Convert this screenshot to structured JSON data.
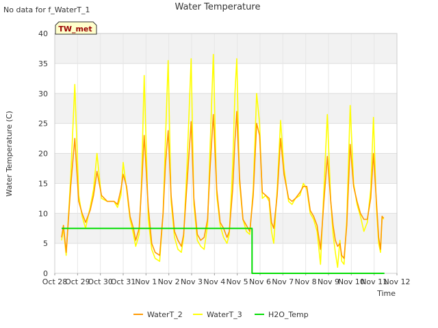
{
  "nodata_text": "No data for f_WaterT_1",
  "badge_label": "TW_met",
  "chart_data": {
    "type": "line",
    "title": "Water Temperature",
    "xlabel": "Time",
    "ylabel": "Water Temperature (C)",
    "ylim": [
      0,
      40
    ],
    "yticks": [
      0,
      5,
      10,
      15,
      20,
      25,
      30,
      35,
      40
    ],
    "xlim": [
      0,
      15
    ],
    "xtick_labels": [
      "Oct 28",
      "Oct 29",
      "Oct 30",
      "Oct 31",
      "Nov 1",
      "Nov 2",
      "Nov 3",
      "Nov 4",
      "Nov 5",
      "Nov 6",
      "Nov 7",
      "Nov 8",
      "Nov 9",
      "Nov 10",
      "Nov 11",
      "Nov 12"
    ],
    "x_unit": "days since Oct 28 00:00",
    "grid": true,
    "legend_position": "bottom-center",
    "series": [
      {
        "name": "WaterT_2",
        "color": "#ff9900",
        "points": [
          [
            0.3,
            6.0
          ],
          [
            0.38,
            8.0
          ],
          [
            0.5,
            3.5
          ],
          [
            0.7,
            14.5
          ],
          [
            0.88,
            22.5
          ],
          [
            1.05,
            12.0
          ],
          [
            1.2,
            10.0
          ],
          [
            1.35,
            8.5
          ],
          [
            1.55,
            10.5
          ],
          [
            1.7,
            13.0
          ],
          [
            1.85,
            17.0
          ],
          [
            2.05,
            13.0
          ],
          [
            2.3,
            12.0
          ],
          [
            2.6,
            12.0
          ],
          [
            2.75,
            11.5
          ],
          [
            2.9,
            14.0
          ],
          [
            3.0,
            16.5
          ],
          [
            3.15,
            14.5
          ],
          [
            3.3,
            9.5
          ],
          [
            3.45,
            7.5
          ],
          [
            3.55,
            5.5
          ],
          [
            3.7,
            7.5
          ],
          [
            3.8,
            14.0
          ],
          [
            3.92,
            23.0
          ],
          [
            4.1,
            11.0
          ],
          [
            4.25,
            5.0
          ],
          [
            4.4,
            3.5
          ],
          [
            4.6,
            3.0
          ],
          [
            4.75,
            10.0
          ],
          [
            4.85,
            18.0
          ],
          [
            4.97,
            23.8
          ],
          [
            5.1,
            13.0
          ],
          [
            5.25,
            7.0
          ],
          [
            5.4,
            5.5
          ],
          [
            5.55,
            4.5
          ],
          [
            5.65,
            6.5
          ],
          [
            5.8,
            15.0
          ],
          [
            5.98,
            25.3
          ],
          [
            6.1,
            12.5
          ],
          [
            6.25,
            6.5
          ],
          [
            6.4,
            5.5
          ],
          [
            6.55,
            6.0
          ],
          [
            6.7,
            9.0
          ],
          [
            6.8,
            17.0
          ],
          [
            6.95,
            26.5
          ],
          [
            7.1,
            14.0
          ],
          [
            7.25,
            8.5
          ],
          [
            7.4,
            7.5
          ],
          [
            7.55,
            6.0
          ],
          [
            7.65,
            7.0
          ],
          [
            7.8,
            14.0
          ],
          [
            7.9,
            22.0
          ],
          [
            7.98,
            27.0
          ],
          [
            8.1,
            16.0
          ],
          [
            8.25,
            9.0
          ],
          [
            8.4,
            8.0
          ],
          [
            8.55,
            7.0
          ],
          [
            8.7,
            13.0
          ],
          [
            8.85,
            25.0
          ],
          [
            8.98,
            23.0
          ],
          [
            9.1,
            13.5
          ],
          [
            9.25,
            13.0
          ],
          [
            9.4,
            12.5
          ],
          [
            9.5,
            8.5
          ],
          [
            9.6,
            7.5
          ],
          [
            9.75,
            13.0
          ],
          [
            9.9,
            22.5
          ],
          [
            10.05,
            16.5
          ],
          [
            10.25,
            12.5
          ],
          [
            10.4,
            12.0
          ],
          [
            10.55,
            12.5
          ],
          [
            10.75,
            13.5
          ],
          [
            10.9,
            14.5
          ],
          [
            11.05,
            14.5
          ],
          [
            11.2,
            10.5
          ],
          [
            11.35,
            9.5
          ],
          [
            11.5,
            8.0
          ],
          [
            11.65,
            4.0
          ],
          [
            11.8,
            12.0
          ],
          [
            11.95,
            19.5
          ],
          [
            12.1,
            12.0
          ],
          [
            12.2,
            8.0
          ],
          [
            12.3,
            5.5
          ],
          [
            12.4,
            4.5
          ],
          [
            12.5,
            5.0
          ],
          [
            12.58,
            3.0
          ],
          [
            12.68,
            2.5
          ],
          [
            12.8,
            8.0
          ],
          [
            12.95,
            21.5
          ],
          [
            13.1,
            14.5
          ],
          [
            13.25,
            12.0
          ],
          [
            13.4,
            10.0
          ],
          [
            13.55,
            9.0
          ],
          [
            13.7,
            9.0
          ],
          [
            13.85,
            12.5
          ],
          [
            13.97,
            20.0
          ],
          [
            14.1,
            12.0
          ],
          [
            14.2,
            6.0
          ],
          [
            14.28,
            4.0
          ],
          [
            14.35,
            9.5
          ],
          [
            14.42,
            9.2
          ]
        ]
      },
      {
        "name": "WaterT_3",
        "color": "#ffff00",
        "points": [
          [
            0.3,
            5.5
          ],
          [
            0.38,
            7.5
          ],
          [
            0.5,
            3.0
          ],
          [
            0.7,
            16.0
          ],
          [
            0.88,
            31.5
          ],
          [
            1.05,
            13.0
          ],
          [
            1.2,
            9.5
          ],
          [
            1.35,
            7.5
          ],
          [
            1.55,
            11.0
          ],
          [
            1.7,
            14.0
          ],
          [
            1.85,
            20.0
          ],
          [
            2.05,
            12.5
          ],
          [
            2.3,
            12.0
          ],
          [
            2.6,
            12.0
          ],
          [
            2.75,
            11.0
          ],
          [
            2.9,
            13.0
          ],
          [
            3.0,
            18.5
          ],
          [
            3.15,
            14.0
          ],
          [
            3.3,
            9.0
          ],
          [
            3.45,
            6.5
          ],
          [
            3.55,
            4.5
          ],
          [
            3.7,
            6.5
          ],
          [
            3.8,
            15.0
          ],
          [
            3.92,
            33.0
          ],
          [
            4.1,
            9.0
          ],
          [
            4.25,
            4.0
          ],
          [
            4.4,
            2.5
          ],
          [
            4.6,
            2.0
          ],
          [
            4.75,
            10.0
          ],
          [
            4.85,
            22.0
          ],
          [
            4.97,
            35.5
          ],
          [
            5.1,
            12.0
          ],
          [
            5.25,
            6.0
          ],
          [
            5.4,
            4.0
          ],
          [
            5.55,
            3.5
          ],
          [
            5.65,
            6.0
          ],
          [
            5.8,
            18.0
          ],
          [
            5.98,
            35.8
          ],
          [
            6.1,
            11.5
          ],
          [
            6.25,
            5.5
          ],
          [
            6.4,
            4.5
          ],
          [
            6.55,
            4.0
          ],
          [
            6.7,
            8.0
          ],
          [
            6.8,
            20.0
          ],
          [
            6.95,
            36.5
          ],
          [
            7.1,
            13.0
          ],
          [
            7.25,
            8.0
          ],
          [
            7.4,
            6.0
          ],
          [
            7.55,
            5.0
          ],
          [
            7.65,
            6.5
          ],
          [
            7.8,
            18.0
          ],
          [
            7.9,
            30.0
          ],
          [
            7.98,
            35.8
          ],
          [
            8.1,
            15.0
          ],
          [
            8.25,
            9.0
          ],
          [
            8.4,
            7.0
          ],
          [
            8.55,
            6.5
          ],
          [
            8.7,
            14.0
          ],
          [
            8.85,
            30.0
          ],
          [
            8.98,
            25.0
          ],
          [
            9.1,
            12.5
          ],
          [
            9.25,
            13.0
          ],
          [
            9.4,
            12.0
          ],
          [
            9.5,
            7.0
          ],
          [
            9.6,
            5.0
          ],
          [
            9.75,
            14.0
          ],
          [
            9.9,
            25.5
          ],
          [
            10.05,
            17.5
          ],
          [
            10.25,
            12.0
          ],
          [
            10.4,
            11.5
          ],
          [
            10.55,
            12.5
          ],
          [
            10.75,
            13.0
          ],
          [
            10.9,
            15.0
          ],
          [
            11.05,
            14.0
          ],
          [
            11.2,
            10.0
          ],
          [
            11.35,
            9.0
          ],
          [
            11.5,
            7.0
          ],
          [
            11.65,
            1.5
          ],
          [
            11.8,
            14.0
          ],
          [
            11.95,
            26.5
          ],
          [
            12.1,
            12.0
          ],
          [
            12.2,
            6.5
          ],
          [
            12.3,
            3.5
          ],
          [
            12.4,
            1.0
          ],
          [
            12.5,
            5.5
          ],
          [
            12.58,
            2.0
          ],
          [
            12.68,
            1.5
          ],
          [
            12.8,
            9.0
          ],
          [
            12.95,
            28.0
          ],
          [
            13.1,
            15.0
          ],
          [
            13.25,
            11.5
          ],
          [
            13.4,
            9.5
          ],
          [
            13.55,
            7.0
          ],
          [
            13.7,
            8.5
          ],
          [
            13.85,
            14.0
          ],
          [
            13.97,
            26.0
          ],
          [
            14.1,
            11.0
          ],
          [
            14.2,
            5.0
          ],
          [
            14.28,
            3.5
          ],
          [
            14.35,
            9.5
          ],
          [
            14.42,
            9.0
          ]
        ]
      },
      {
        "name": "H2O_Temp",
        "color": "#00dd00",
        "points": [
          [
            0.3,
            7.5
          ],
          [
            8.65,
            7.5
          ],
          [
            8.65,
            0.0
          ],
          [
            14.45,
            0.0
          ]
        ]
      }
    ]
  }
}
